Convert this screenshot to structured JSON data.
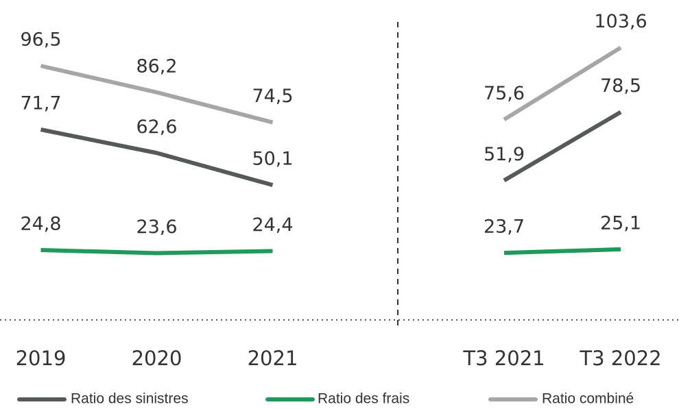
{
  "chart_data": [
    {
      "type": "line",
      "categories": [
        "2019",
        "2020",
        "2021"
      ],
      "ylim": [
        0,
        120
      ],
      "series": [
        {
          "name": "Ratio des sinistres",
          "color": "#555959",
          "values": [
            71.7,
            62.6,
            50.1
          ],
          "value_labels": [
            "71,7",
            "62,6",
            "50,1"
          ]
        },
        {
          "name": "Ratio des frais",
          "color": "#1f9a5b",
          "values": [
            24.8,
            23.6,
            24.4
          ],
          "value_labels": [
            "24,8",
            "23,6",
            "24,4"
          ]
        },
        {
          "name": "Ratio combiné",
          "color": "#a5a7a7",
          "values": [
            96.5,
            86.2,
            74.5
          ],
          "value_labels": [
            "96,5",
            "86,2",
            "74,5"
          ]
        }
      ]
    },
    {
      "type": "line",
      "categories": [
        "T3 2021",
        "T3 2022"
      ],
      "ylim": [
        0,
        120
      ],
      "series": [
        {
          "name": "Ratio des sinistres",
          "color": "#555959",
          "values": [
            51.9,
            78.5
          ],
          "value_labels": [
            "51,9",
            "78,5"
          ]
        },
        {
          "name": "Ratio des frais",
          "color": "#1f9a5b",
          "values": [
            23.7,
            25.1
          ],
          "value_labels": [
            "23,7",
            "25,1"
          ]
        },
        {
          "name": "Ratio combiné",
          "color": "#a5a7a7",
          "values": [
            75.6,
            103.6
          ],
          "value_labels": [
            "75,6",
            "103,6"
          ]
        }
      ]
    }
  ]
}
